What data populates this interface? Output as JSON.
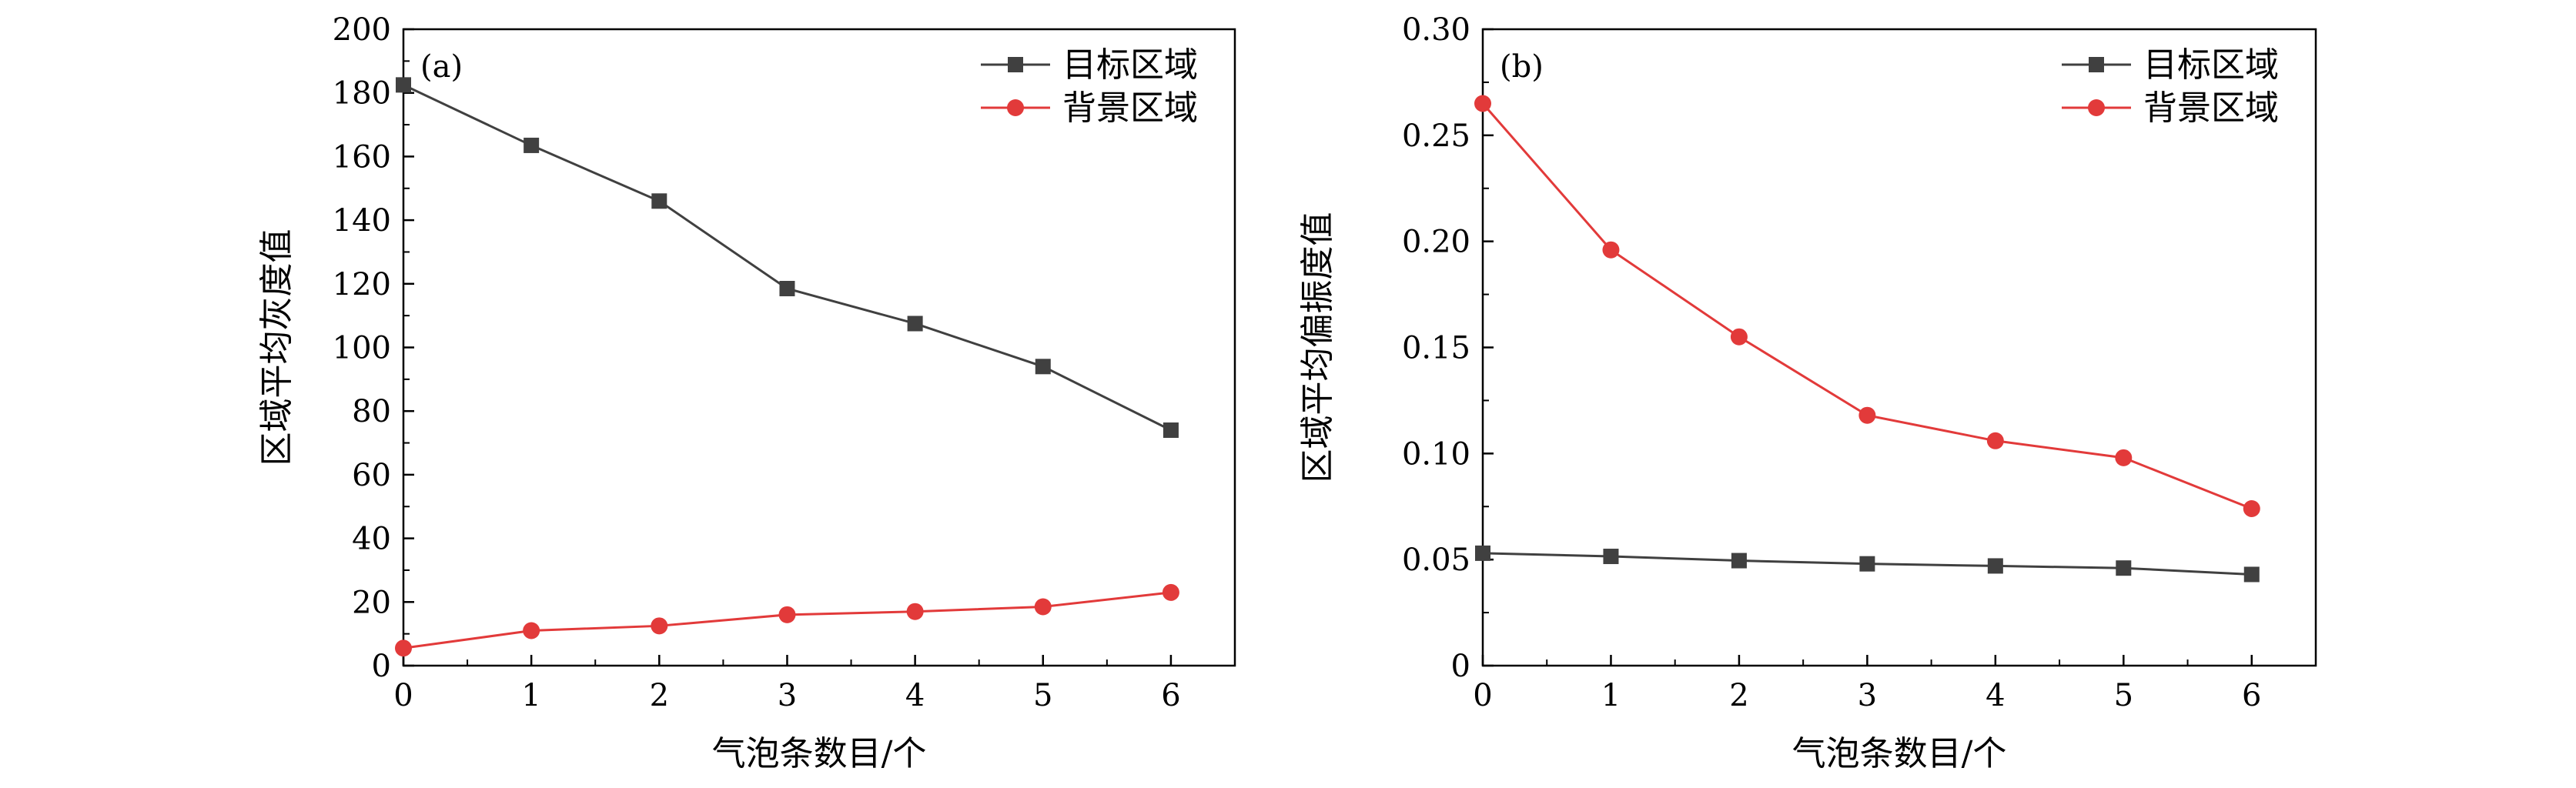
{
  "chart_data": [
    {
      "type": "line",
      "panel_label": "(a)",
      "xlabel": "气泡条数目/个",
      "ylabel": "区域平均灰度值",
      "x": [
        0,
        1,
        2,
        3,
        4,
        5,
        6
      ],
      "xlim": [
        0,
        6.5
      ],
      "ylim": [
        0,
        200
      ],
      "xticks": [
        "0",
        "1",
        "2",
        "3",
        "4",
        "5",
        "6"
      ],
      "yticks": [
        "0",
        "20",
        "40",
        "60",
        "80",
        "100",
        "120",
        "140",
        "160",
        "180",
        "200"
      ],
      "legend_position": "top-right",
      "series": [
        {
          "name": "目标区域",
          "marker": "square",
          "color": "#404040",
          "values": [
            182.5,
            163.5,
            146,
            118.5,
            107.5,
            94,
            74
          ]
        },
        {
          "name": "背景区域",
          "marker": "circle",
          "color": "#e23a3a",
          "values": [
            5.5,
            11,
            12.5,
            16,
            17,
            18.5,
            23
          ]
        }
      ]
    },
    {
      "type": "line",
      "panel_label": "(b)",
      "xlabel": "气泡条数目/个",
      "ylabel": "区域平均偏振度值",
      "x": [
        0,
        1,
        2,
        3,
        4,
        5,
        6
      ],
      "xlim": [
        0,
        6.5
      ],
      "ylim": [
        0,
        0.3
      ],
      "xticks": [
        "0",
        "1",
        "2",
        "3",
        "4",
        "5",
        "6"
      ],
      "yticks": [
        "0",
        "0.05",
        "0.10",
        "0.15",
        "0.20",
        "0.25",
        "0.30"
      ],
      "legend_position": "top-right",
      "series": [
        {
          "name": "目标区域",
          "marker": "square",
          "color": "#404040",
          "values": [
            0.053,
            0.0515,
            0.0495,
            0.048,
            0.047,
            0.046,
            0.043
          ]
        },
        {
          "name": "背景区域",
          "marker": "circle",
          "color": "#e23a3a",
          "values": [
            0.265,
            0.196,
            0.155,
            0.118,
            0.106,
            0.098,
            0.074
          ]
        }
      ]
    }
  ]
}
